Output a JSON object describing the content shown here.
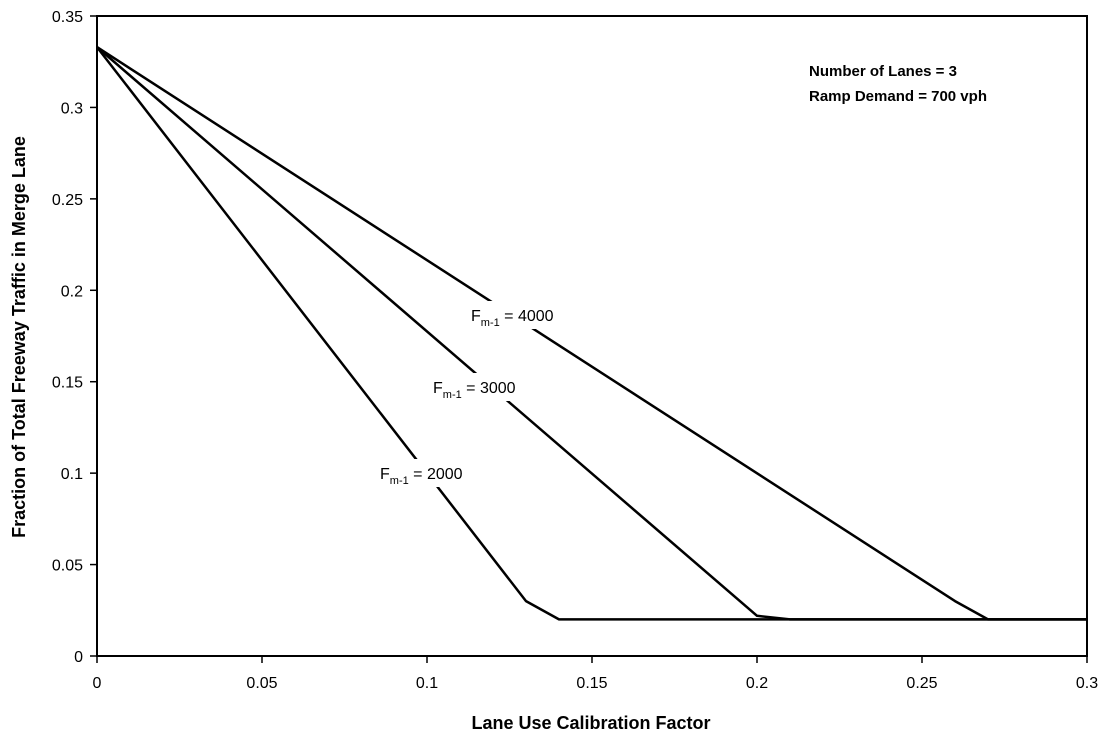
{
  "chart_data": {
    "type": "line",
    "title": "",
    "xlabel": "Lane Use Calibration Factor",
    "ylabel": "Fraction of Total Freeway Traffic in Merge Lane",
    "xlim": [
      0,
      0.3
    ],
    "ylim": [
      0,
      0.35
    ],
    "x_ticks": [
      "0",
      "0.05",
      "0.1",
      "0.15",
      "0.2",
      "0.25",
      "0.3"
    ],
    "y_ticks": [
      "0",
      "0.05",
      "0.1",
      "0.15",
      "0.2",
      "0.25",
      "0.3",
      "0.35"
    ],
    "grid": false,
    "legend": "none",
    "line_color": "#000000",
    "annotations": [
      "Number of Lanes = 3",
      "Ramp Demand = 700 vph"
    ],
    "series": [
      {
        "label_main": "F",
        "label_sub": "m-1",
        "label_value": " = 4000",
        "points": [
          [
            0,
            0.333
          ],
          [
            0.26,
            0.03
          ],
          [
            0.27,
            0.02
          ],
          [
            0.3,
            0.02
          ]
        ]
      },
      {
        "label_main": "F",
        "label_sub": "m-1",
        "label_value": " = 3000",
        "points": [
          [
            0,
            0.333
          ],
          [
            0.2,
            0.022
          ],
          [
            0.21,
            0.02
          ],
          [
            0.3,
            0.02
          ]
        ]
      },
      {
        "label_main": "F",
        "label_sub": "m-1",
        "label_value": " = 2000",
        "points": [
          [
            0,
            0.333
          ],
          [
            0.13,
            0.03
          ],
          [
            0.14,
            0.02
          ],
          [
            0.3,
            0.02
          ]
        ]
      }
    ]
  }
}
